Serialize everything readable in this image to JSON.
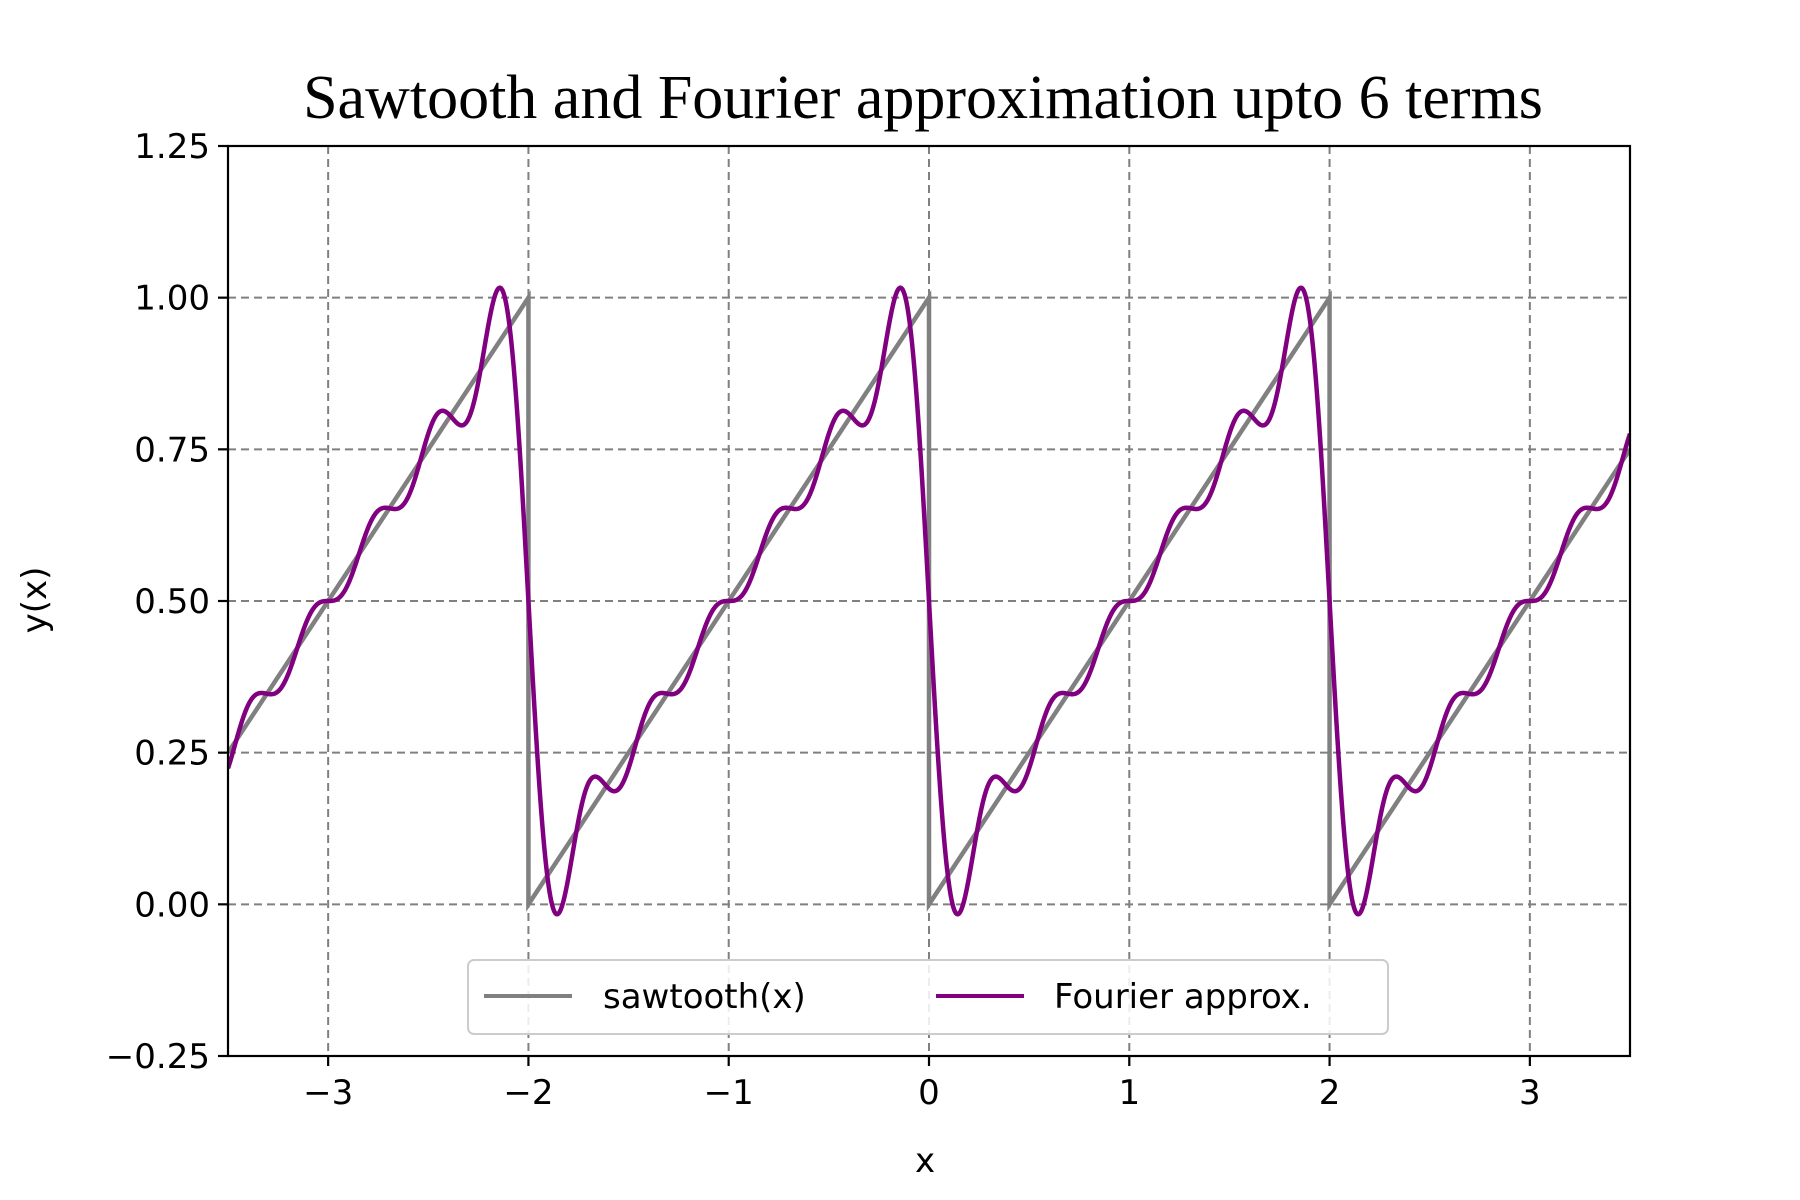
{
  "chart_data": {
    "type": "line",
    "title": "Sawtooth and Fourier approximation upto 6 terms",
    "xlabel": "x",
    "ylabel": "y(x)",
    "xlim": [
      -3.5,
      3.5
    ],
    "ylim": [
      -0.25,
      1.25
    ],
    "grid": true,
    "legend_position": "lower-center",
    "x_ticks": [
      -3,
      -2,
      -1,
      0,
      1,
      2,
      3
    ],
    "x_tick_labels": [
      "−3",
      "−2",
      "−1",
      "0",
      "1",
      "2",
      "3"
    ],
    "y_ticks": [
      -0.25,
      0,
      0.25,
      0.5,
      0.75,
      1.0,
      1.25
    ],
    "y_tick_labels": [
      "−0.25",
      "0.00",
      "0.25",
      "0.50",
      "0.75",
      "1.00",
      "1.25"
    ],
    "series": [
      {
        "name": "sawtooth(x)",
        "color": "#808080",
        "points": [
          [
            -3.5,
            0.25
          ],
          [
            -2.0,
            1.0
          ],
          [
            -2.0,
            0.0
          ],
          [
            0.0,
            1.0
          ],
          [
            0.0,
            0.0
          ],
          [
            2.0,
            1.0
          ],
          [
            2.0,
            0.0
          ],
          [
            3.5,
            0.75
          ]
        ]
      },
      {
        "name": "Fourier approx.",
        "color": "#800080",
        "period": 2,
        "terms": 6,
        "points_sampled": [
          [
            -3.5,
            0.22
          ],
          [
            -3.4,
            0.3
          ],
          [
            -3.3,
            0.35
          ],
          [
            -3.2,
            0.36
          ],
          [
            -3.0,
            0.5
          ],
          [
            -2.85,
            0.51
          ],
          [
            -2.7,
            0.65
          ],
          [
            -2.6,
            0.66
          ],
          [
            -2.45,
            0.81
          ],
          [
            -2.35,
            0.79
          ],
          [
            -2.15,
            1.02
          ],
          [
            -2.0,
            0.5
          ],
          [
            -1.87,
            -0.02
          ],
          [
            -1.7,
            0.21
          ],
          [
            -1.6,
            0.19
          ],
          [
            -1.45,
            0.35
          ],
          [
            -1.0,
            0.5
          ],
          [
            -0.15,
            1.02
          ],
          [
            0.0,
            0.5
          ],
          [
            0.13,
            -0.02
          ],
          [
            1.0,
            0.5
          ],
          [
            1.85,
            1.02
          ],
          [
            2.0,
            0.5
          ],
          [
            2.13,
            -0.02
          ],
          [
            3.0,
            0.5
          ],
          [
            3.5,
            0.78
          ]
        ]
      }
    ]
  }
}
